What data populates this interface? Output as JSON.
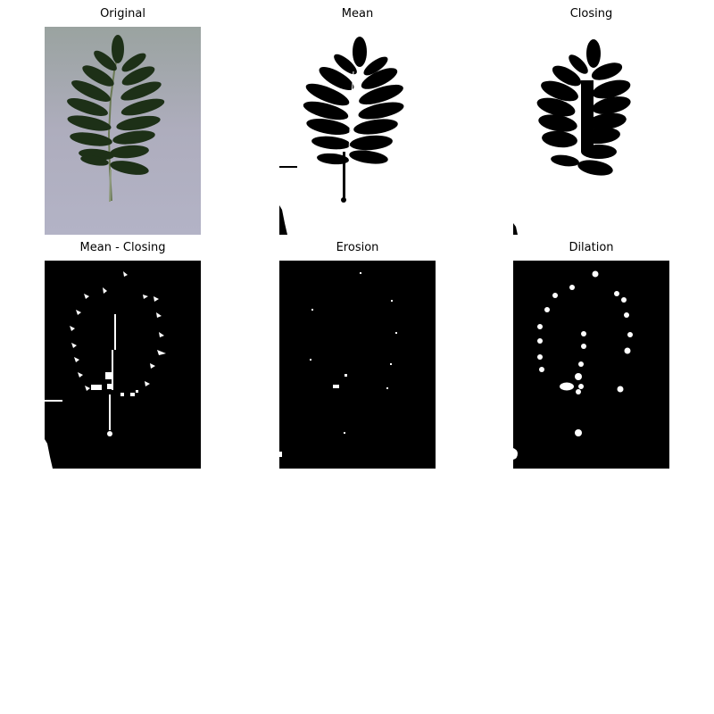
{
  "panels": [
    {
      "title": "Original"
    },
    {
      "title": "Mean"
    },
    {
      "title": "Closing"
    },
    {
      "title": "Mean - Closing"
    },
    {
      "title": "Erosion"
    },
    {
      "title": "Dilation"
    }
  ],
  "colors": {
    "background": "#a9adb8",
    "leaf": "#1f3318",
    "mask_foreground": "#000000",
    "mask_background": "#ffffff"
  }
}
